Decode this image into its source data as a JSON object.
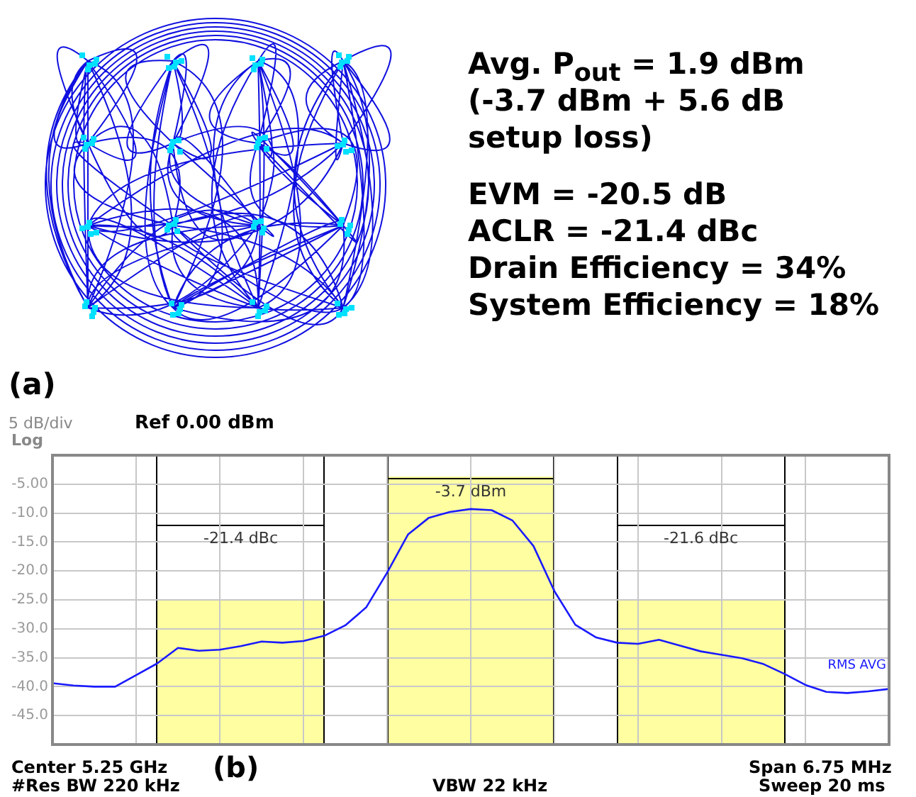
{
  "chart_data": [
    {
      "type": "other",
      "annotations": [
        "Avg. P$_{out}$ =  1.9 dBm",
        "(-3.7 dBm + 5.6 dB",
        "setup loss)",
        "EVM = -20.5 dB",
        "ACLR = -21.4 dBc",
        "Drain Efficiency = 34%",
        "System Efficiency = 18%",
        "(a)"
      ]
    },
    {
      "type": "line",
      "title": "Ref 0.00 dBm",
      "annotations": [
        "5 dB/div",
        "Log",
        "Center  5.25 GHz",
        "#Res BW  220 kHz",
        "(b)",
        "VBW  22 kHz",
        "Span 6.75 MHz",
        "Sweep  20 ms",
        "-21.4 dBc",
        "-3.7 dBm",
        "-21.6 dBc"
      ],
      "categories": [
        null,
        null,
        null,
        null,
        null,
        null,
        null,
        null,
        null,
        null,
        null,
        null,
        null,
        null,
        null,
        null,
        null,
        null,
        null,
        null,
        null,
        null,
        null,
        null,
        null,
        null,
        null,
        null,
        null,
        null,
        null,
        null,
        null,
        null,
        null,
        null,
        null,
        null,
        null,
        null,
        null
      ],
      "ylim": [
        -50,
        0
      ],
      "yticks": [
        {
          "value": -45,
          "label": "-45.0"
        },
        {
          "value": -40,
          "label": "-40.0"
        },
        {
          "value": -35,
          "label": "-35.0"
        },
        {
          "value": -30,
          "label": "-30.0"
        },
        {
          "value": -25,
          "label": "-25.0"
        },
        {
          "value": -20,
          "label": "-20.0"
        },
        {
          "value": -15,
          "label": "-15.0"
        },
        {
          "value": -10,
          "label": "-10.0"
        },
        {
          "value": -5,
          "label": "-5.00"
        }
      ],
      "grid": true,
      "series": [
        {
          "name": "RMS AVG",
          "color": "#1a1aff",
          "values": [
            -39.4,
            -39.8,
            -40.0,
            -40.0,
            -38.0,
            -36.0,
            -33.3,
            -33.8,
            -33.6,
            -33.0,
            -32.2,
            -32.4,
            -32.1,
            -31.2,
            -29.4,
            -26.3,
            -20.3,
            -13.7,
            -10.8,
            -9.8,
            -9.3,
            -9.5,
            -11.3,
            -15.7,
            -23.5,
            -29.3,
            -31.5,
            -32.4,
            -32.6,
            -31.9,
            -32.9,
            -33.9,
            -34.5,
            -35.1,
            -36.1,
            -37.8,
            -39.7,
            -40.9,
            -41.1,
            -40.8,
            -40.4
          ]
        }
      ]
    }
  ]
}
